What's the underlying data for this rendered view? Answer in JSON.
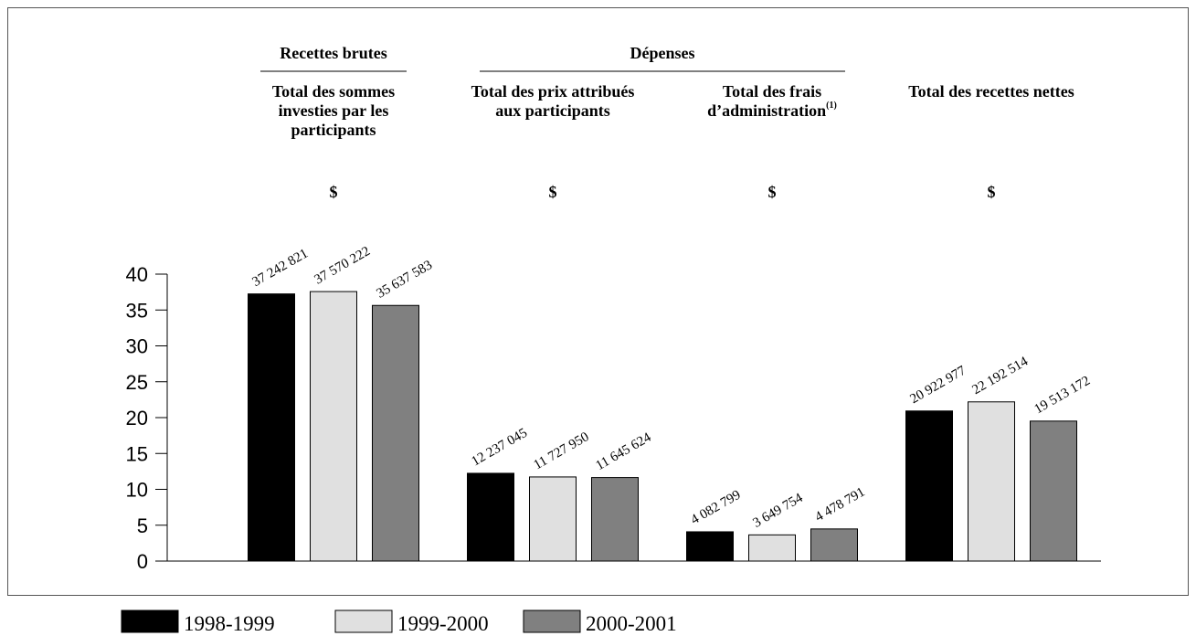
{
  "chart_data": {
    "type": "bar",
    "groups": [
      {
        "label": "Recettes brutes",
        "categories": [
          0
        ]
      },
      {
        "label": "Dépenses",
        "categories": [
          1,
          2
        ]
      }
    ],
    "categories": [
      "Total des sommes investies par les participants",
      "Total des prix attribués aux participants",
      "Total des frais d’administration",
      "Total des recettes nettes"
    ],
    "category_marks": [
      null,
      null,
      "(1)",
      null
    ],
    "unit_label": "$",
    "series": [
      {
        "name": "1998-1999",
        "color": "#000000",
        "values": [
          37.242821,
          12.237045,
          4.082799,
          20.922977
        ],
        "value_labels": [
          "37 242 821",
          "12 237 045",
          "4 082 799",
          "20 922 977"
        ]
      },
      {
        "name": "1999-2000",
        "color": "#e0e0e0",
        "values": [
          37.570222,
          11.72795,
          3.649754,
          22.192514
        ],
        "value_labels": [
          "37 570 222",
          "11 727 950",
          "3 649 754",
          "22 192 514"
        ]
      },
      {
        "name": "2000-2001",
        "color": "#808080",
        "values": [
          35.637583,
          11.645624,
          4.478791,
          19.513172
        ],
        "value_labels": [
          "35 637 583",
          "11 645 624",
          "4 478 791",
          "19 513 172"
        ]
      }
    ],
    "ylim": [
      0,
      40
    ],
    "yticks": [
      0,
      5,
      10,
      15,
      20,
      25,
      30,
      35,
      40
    ],
    "legend": "bottom"
  }
}
